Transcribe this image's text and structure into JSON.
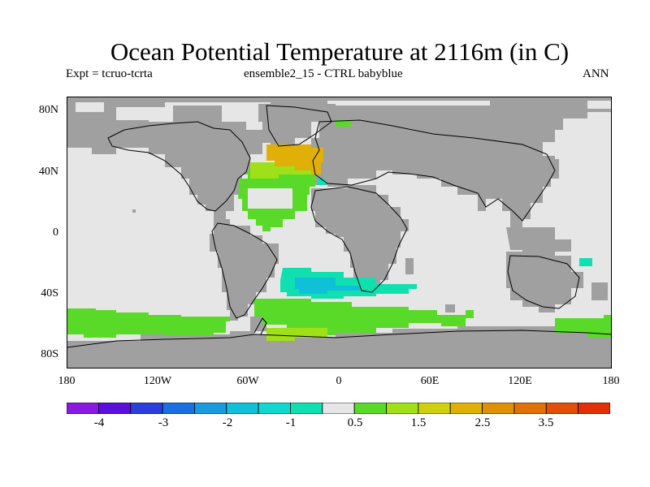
{
  "title": "Ocean Potential Temperature at 2116m (in C)",
  "subtitle_left": "Expt = tcruo-tcrta",
  "subtitle_center": "ensemble2_15 - CTRL babyblue",
  "subtitle_right": "ANN",
  "y_ticks": [
    "80N",
    "40N",
    "0",
    "40S",
    "80S"
  ],
  "x_ticks": [
    "180",
    "120W",
    "60W",
    "0",
    "60E",
    "120E",
    "180"
  ],
  "colorbar": {
    "colors": [
      "#8a1ae0",
      "#5a10d8",
      "#2a40d8",
      "#1a70e0",
      "#1a9ae0",
      "#10c0d8",
      "#10d8d0",
      "#10e0b0",
      "#e6e6e6",
      "#5ada28",
      "#a0e018",
      "#d0d010",
      "#e0b008",
      "#e09008",
      "#e07008",
      "#e05008",
      "#e03008"
    ],
    "labels": [
      "-4",
      "-3",
      "-2",
      "-1",
      "0.5",
      "1.5",
      "2.5",
      "3.5"
    ]
  },
  "colors": {
    "land": "#a0a0a0",
    "ocean_near_zero": "#e6e6e6",
    "green": "#5ada28",
    "yellowgreen": "#a0e018",
    "orange": "#e0b008",
    "cyan": "#10d8d0",
    "teal": "#10e0b0"
  }
}
